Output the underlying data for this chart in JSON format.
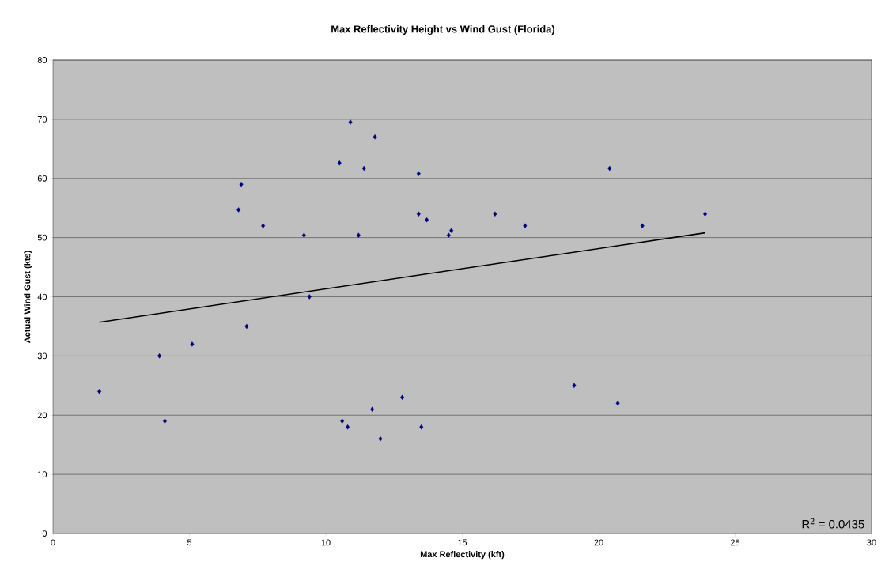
{
  "chart_data": {
    "type": "scatter",
    "title": "Max Reflectivity Height vs Wind Gust (Florida)",
    "xlabel": "Max Reflectivity (kft)",
    "ylabel": "Actual Wind Gust (kts)",
    "x": [
      1.7,
      3.9,
      4.1,
      5.1,
      6.8,
      6.9,
      7.1,
      7.7,
      9.4,
      9.2,
      10.5,
      10.9,
      11.2,
      11.4,
      11.8,
      10.6,
      10.8,
      11.7,
      12.0,
      12.8,
      13.4,
      13.4,
      13.5,
      13.7,
      14.5,
      14.6,
      16.2,
      17.3,
      19.1,
      20.4,
      20.7,
      21.6,
      23.9
    ],
    "series": [
      {
        "color": "#000080",
        "marker": "diamond",
        "values": [
          24,
          30,
          19,
          32,
          54.7,
          59,
          35,
          52,
          40,
          50.4,
          62.6,
          69.5,
          50.4,
          61.7,
          67,
          19,
          18,
          21,
          16,
          23,
          60.8,
          54,
          18,
          53,
          50.4,
          51.2,
          54,
          52,
          25,
          61.7,
          22,
          52,
          54
        ]
      },
      {
        "type": "line",
        "color": "#000000",
        "marker": "none",
        "x": [
          1.7,
          23.9
        ],
        "values": [
          35.7,
          50.8
        ]
      }
    ],
    "xlim": [
      0,
      30
    ],
    "xticks": [
      0,
      5,
      10,
      15,
      20,
      25,
      30
    ],
    "ylim": [
      0,
      80
    ],
    "yticks": [
      0,
      10,
      20,
      30,
      40,
      50,
      60,
      70,
      80
    ],
    "grid": "y",
    "annotations": [
      "R$^{2}$ = 0.0435"
    ]
  }
}
